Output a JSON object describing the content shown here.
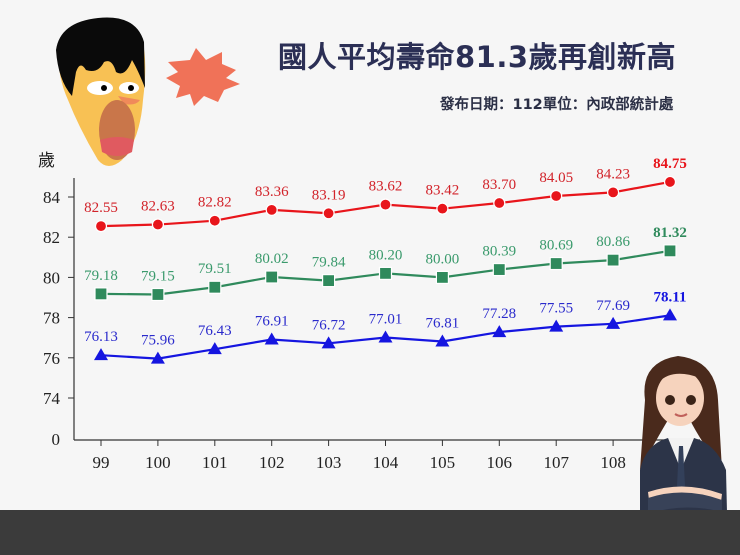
{
  "header": {
    "title": "國人平均壽命81.3歲再創新高",
    "subtitle": "發布日期：112單位：內政部統計處"
  },
  "chart_data": {
    "type": "line",
    "ylabel": "歲",
    "yticks": [
      0,
      74,
      76,
      78,
      80,
      82,
      84
    ],
    "ylim_broken": [
      74,
      85
    ],
    "categories": [
      "99",
      "100",
      "101",
      "102",
      "103",
      "104",
      "105",
      "106",
      "107",
      "108",
      ""
    ],
    "grid": false,
    "series": [
      {
        "marker": "circle",
        "color": "#e8151b",
        "label_color": "#d2232a",
        "values": [
          82.55,
          82.63,
          82.82,
          83.36,
          83.19,
          83.62,
          83.42,
          83.7,
          84.05,
          84.23,
          84.75
        ]
      },
      {
        "marker": "square",
        "color": "#2f8a5c",
        "label_color": "#3a9a6c",
        "values": [
          79.18,
          79.15,
          79.51,
          80.02,
          79.84,
          80.2,
          80.0,
          80.39,
          80.69,
          80.86,
          81.32
        ]
      },
      {
        "marker": "triangle",
        "color": "#1515e0",
        "label_color": "#2a2acc",
        "values": [
          76.13,
          75.96,
          76.43,
          76.91,
          76.72,
          77.01,
          76.81,
          77.28,
          77.55,
          77.69,
          78.11
        ]
      }
    ]
  },
  "decorations": {
    "shocked-face": "cartoon-shocked-man",
    "burst": "red-starburst",
    "girl": "cartoon-girl-in-uniform"
  }
}
